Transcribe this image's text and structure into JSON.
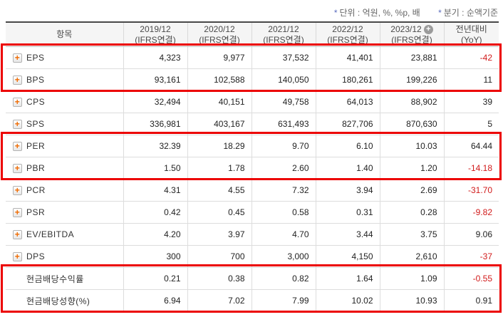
{
  "notes": {
    "unit_marker": "*",
    "unit_text": "단위 : 억원, %, %p, 배",
    "basis_marker": "*",
    "basis_text": "분기 : 순액기준"
  },
  "colors": {
    "highlight_red": "#ec0000",
    "negative_red": "#d11a1a",
    "icon_orange": "#f06a00",
    "header_bg": "#f5f5f5"
  },
  "table": {
    "item_header": "항목",
    "columns": [
      {
        "line1": "2019/12",
        "line2": "(IFRS연결)",
        "has_add_icon": false
      },
      {
        "line1": "2020/12",
        "line2": "(IFRS연결)",
        "has_add_icon": false
      },
      {
        "line1": "2021/12",
        "line2": "(IFRS연결)",
        "has_add_icon": false
      },
      {
        "line1": "2022/12",
        "line2": "(IFRS연결)",
        "has_add_icon": false
      },
      {
        "line1": "2023/12",
        "line2": "(IFRS연결)",
        "has_add_icon": true
      },
      {
        "line1": "전년대비",
        "line2": "(YoY)",
        "has_add_icon": false
      }
    ],
    "add_icon_glyph": "+",
    "expand_icon_glyph": "+",
    "rows": [
      {
        "label": "EPS",
        "expandable": true,
        "values": [
          "4,323",
          "9,977",
          "37,532",
          "41,401",
          "23,881"
        ],
        "yoy": "-42"
      },
      {
        "label": "BPS",
        "expandable": true,
        "values": [
          "93,161",
          "102,588",
          "140,050",
          "180,261",
          "199,226"
        ],
        "yoy": "11"
      },
      {
        "label": "CPS",
        "expandable": true,
        "values": [
          "32,494",
          "40,151",
          "49,758",
          "64,013",
          "88,902"
        ],
        "yoy": "39"
      },
      {
        "label": "SPS",
        "expandable": true,
        "values": [
          "336,981",
          "403,167",
          "631,493",
          "827,706",
          "870,630"
        ],
        "yoy": "5"
      },
      {
        "label": "PER",
        "expandable": true,
        "values": [
          "32.39",
          "18.29",
          "9.70",
          "6.10",
          "10.03"
        ],
        "yoy": "64.44"
      },
      {
        "label": "PBR",
        "expandable": true,
        "values": [
          "1.50",
          "1.78",
          "2.60",
          "1.40",
          "1.20"
        ],
        "yoy": "-14.18"
      },
      {
        "label": "PCR",
        "expandable": true,
        "values": [
          "4.31",
          "4.55",
          "7.32",
          "3.94",
          "2.69"
        ],
        "yoy": "-31.70"
      },
      {
        "label": "PSR",
        "expandable": true,
        "values": [
          "0.42",
          "0.45",
          "0.58",
          "0.31",
          "0.28"
        ],
        "yoy": "-9.82"
      },
      {
        "label": "EV/EBITDA",
        "expandable": true,
        "values": [
          "4.20",
          "3.97",
          "4.70",
          "3.44",
          "3.75"
        ],
        "yoy": "9.06"
      },
      {
        "label": "DPS",
        "expandable": true,
        "values": [
          "300",
          "700",
          "3,000",
          "4,150",
          "2,610"
        ],
        "yoy": "-37"
      },
      {
        "label": "현금배당수익률",
        "expandable": false,
        "values": [
          "0.21",
          "0.38",
          "0.82",
          "1.64",
          "1.09"
        ],
        "yoy": "-0.55"
      },
      {
        "label": "현금배당성향(%)",
        "expandable": false,
        "values": [
          "6.94",
          "7.02",
          "7.99",
          "10.02",
          "10.93"
        ],
        "yoy": "0.91"
      }
    ],
    "highlight_groups": [
      [
        0,
        1
      ],
      [
        4,
        5
      ],
      [
        10,
        11
      ]
    ]
  }
}
